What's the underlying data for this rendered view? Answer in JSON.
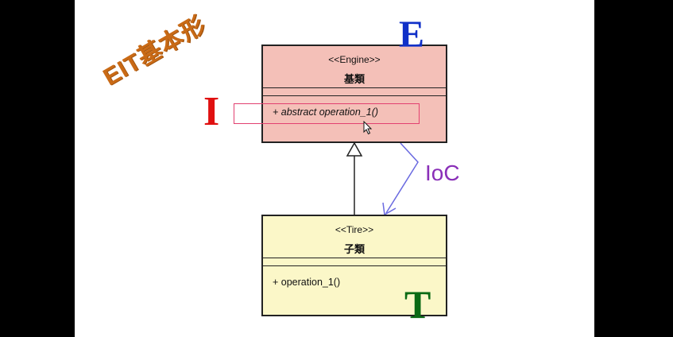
{
  "slide": {
    "title": "EIT基本形",
    "letter_e": "E",
    "letter_i": "I",
    "letter_t": "T",
    "ioc_label": "IoC"
  },
  "engine": {
    "stereotype": "<<Engine>>",
    "name": "基類",
    "operation": "+ abstract operation_1()"
  },
  "tire": {
    "stereotype": "<<Tire>>",
    "name": "子類",
    "operation": "+ operation_1()"
  },
  "colors": {
    "title": "#c96a16",
    "engine_fill": "#f4c0b8",
    "tire_fill": "#fbf7c8",
    "e": "#1030c8",
    "i": "#e01010",
    "t": "#0a6a14",
    "ioc_text": "#8a2fb8",
    "ioc_arrow": "#6a6ae0"
  }
}
